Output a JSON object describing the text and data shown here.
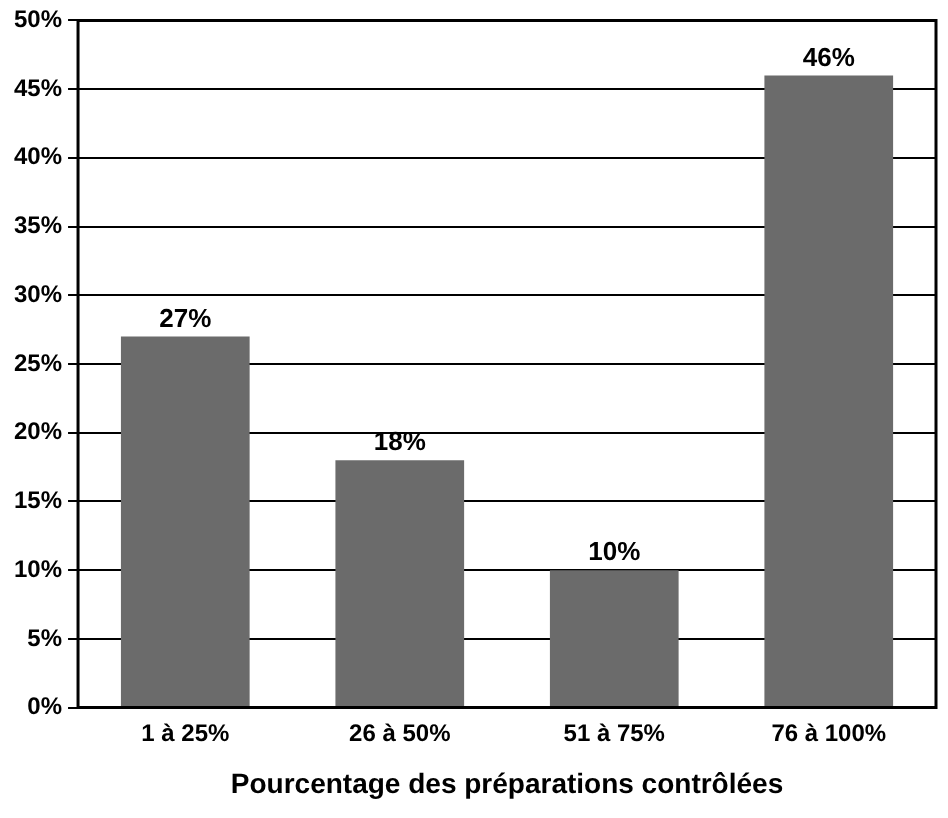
{
  "chart_data": {
    "type": "bar",
    "xlabel": "Pourcentage des préparations contrôlées",
    "categories": [
      "1 à 25%",
      "26 à 50%",
      "51 à 75%",
      "76 à 100%"
    ],
    "values": [
      27,
      18,
      10,
      46
    ],
    "color": "#6b6b6b",
    "value_labels": [
      "27%",
      "18%",
      "10%",
      "46%"
    ],
    "ylim": [
      0,
      50
    ],
    "yticks": [
      {
        "value": 0,
        "label": "0%"
      },
      {
        "value": 5,
        "label": "5%"
      },
      {
        "value": 10,
        "label": "10%"
      },
      {
        "value": 15,
        "label": "15%"
      },
      {
        "value": 20,
        "label": "20%"
      },
      {
        "value": 25,
        "label": "25%"
      },
      {
        "value": 30,
        "label": "30%"
      },
      {
        "value": 35,
        "label": "35%"
      },
      {
        "value": 40,
        "label": "40%"
      },
      {
        "value": 45,
        "label": "45%"
      },
      {
        "value": 50,
        "label": "50%"
      }
    ],
    "grid": "y",
    "legend": false
  }
}
